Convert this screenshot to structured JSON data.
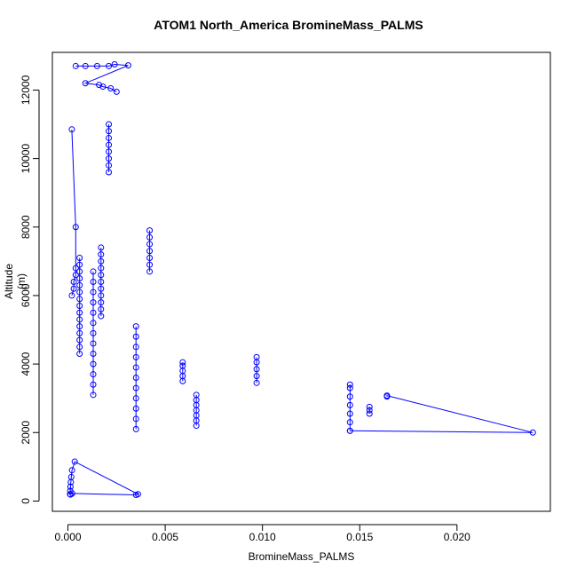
{
  "chart_data": {
    "type": "scatter",
    "title": "ATOM1 North_America BromineMass_PALMS",
    "xlabel": "BromineMass_PALMS",
    "ylabel": "Altitude (m)",
    "xlim": [
      -0.0008,
      0.0248
    ],
    "ylim": [
      -300,
      13100
    ],
    "xticks": [
      0.0,
      0.005,
      0.01,
      0.015,
      0.02
    ],
    "xtick_labels": [
      "0.000",
      "0.005",
      "0.010",
      "0.015",
      "0.020"
    ],
    "yticks": [
      0,
      2000,
      4000,
      6000,
      8000,
      10000,
      12000
    ],
    "ytick_labels": [
      "0",
      "2000",
      "4000",
      "6000",
      "8000",
      "10000",
      "12000"
    ],
    "marker": "open-circle",
    "connected": true,
    "color": "#0000ff",
    "series": [
      {
        "x": [
          0.00011,
          0.00012,
          0.00013,
          0.00015,
          0.00017,
          0.00021,
          0.00035,
          0.0036,
          0.0035,
          0.00022,
          0.00013
        ],
        "y": [
          200,
          300,
          420,
          550,
          700,
          900,
          1150,
          200,
          180,
          220,
          190
        ]
      },
      {
        "x": [
          0.0006,
          0.0006,
          0.0006,
          0.0006,
          0.0006,
          0.0006,
          0.0006,
          0.0006,
          0.0006,
          0.0006,
          0.0006,
          0.0006,
          0.0006,
          0.0006,
          0.0006
        ],
        "y": [
          4300,
          4500,
          4700,
          4900,
          5100,
          5300,
          5500,
          5700,
          5900,
          6100,
          6300,
          6500,
          6700,
          6900,
          7100
        ]
      },
      {
        "x": [
          0.0013,
          0.0013,
          0.0013,
          0.0013,
          0.0013,
          0.0013,
          0.0013,
          0.0013,
          0.0013,
          0.0013,
          0.0013,
          0.0013,
          0.0013
        ],
        "y": [
          3100,
          3400,
          3700,
          4000,
          4300,
          4600,
          4900,
          5200,
          5500,
          5800,
          6100,
          6400,
          6700
        ]
      },
      {
        "x": [
          0.0017,
          0.0017,
          0.0017,
          0.0017,
          0.0017,
          0.0017,
          0.0017,
          0.0017,
          0.0017,
          0.0017,
          0.0017
        ],
        "y": [
          5400,
          5600,
          5800,
          6000,
          6200,
          6400,
          6600,
          6800,
          7000,
          7200,
          7400
        ]
      },
      {
        "x": [
          0.0021,
          0.0021,
          0.0021,
          0.0021,
          0.0021,
          0.0021,
          0.0021,
          0.0021
        ],
        "y": [
          9600,
          9800,
          10000,
          10200,
          10400,
          10600,
          10800,
          11000
        ]
      },
      {
        "x": [
          0.0042,
          0.0042,
          0.0042,
          0.0042,
          0.0042,
          0.0042,
          0.0042
        ],
        "y": [
          6700,
          6900,
          7100,
          7300,
          7500,
          7700,
          7900
        ]
      },
      {
        "x": [
          0.0059,
          0.0059,
          0.0059,
          0.0059,
          0.0059
        ],
        "y": [
          3500,
          3650,
          3800,
          3950,
          4050
        ]
      },
      {
        "x": [
          0.0066,
          0.0066,
          0.0066,
          0.0066,
          0.0066,
          0.0066,
          0.0066
        ],
        "y": [
          2200,
          2350,
          2500,
          2650,
          2800,
          2950,
          3100
        ]
      },
      {
        "x": [
          0.0097,
          0.0097,
          0.0097,
          0.0097,
          0.0097
        ],
        "y": [
          3450,
          3650,
          3850,
          4050,
          4200
        ]
      },
      {
        "x": [
          0.0145,
          0.0145,
          0.0145,
          0.0145,
          0.0145,
          0.0145,
          0.0145
        ],
        "y": [
          2050,
          2300,
          2550,
          2800,
          3050,
          3300,
          3400
        ]
      },
      {
        "x": [
          0.0155,
          0.0155,
          0.0155
        ],
        "y": [
          2550,
          2650,
          2750
        ]
      },
      {
        "x": [
          0.0164,
          0.0164,
          0.0239,
          0.0145
        ],
        "y": [
          3050,
          3080,
          2000,
          2050
        ]
      },
      {
        "x": [
          0.0004,
          0.0009,
          0.0015,
          0.0021,
          0.0024,
          0.0031,
          0.0009,
          0.0016,
          0.0018,
          0.0022,
          0.0025
        ],
        "y": [
          12700,
          12700,
          12700,
          12700,
          12750,
          12720,
          12200,
          12150,
          12100,
          12050,
          11950
        ]
      },
      {
        "x": [
          0.0035,
          0.0035,
          0.0035,
          0.0035,
          0.0035,
          0.0035,
          0.0035,
          0.0035,
          0.0035,
          0.0035,
          0.0035
        ],
        "y": [
          2100,
          2400,
          2700,
          3000,
          3300,
          3600,
          3900,
          4200,
          4500,
          4800,
          5100
        ]
      },
      {
        "x": [
          0.0002,
          0.0003,
          0.0003,
          0.0004,
          0.0004,
          0.0004,
          0.0002
        ],
        "y": [
          6000,
          6200,
          6400,
          6600,
          6800,
          8000,
          10850
        ]
      }
    ],
    "grid": false,
    "legend": false
  }
}
